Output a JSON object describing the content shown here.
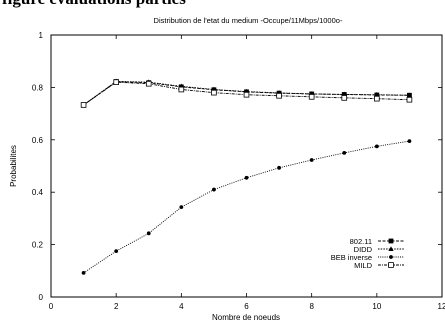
{
  "page": {
    "above_title": "figure evaluations parties"
  },
  "chart_data": {
    "type": "line",
    "title": "Distribution de l'etat du medium -Occupe/11Mbps/1000o-",
    "xlabel": "Nombre de noeuds",
    "ylabel": "Probabilites",
    "xlim": [
      0,
      12
    ],
    "ylim": [
      0,
      1
    ],
    "xticks": [
      0,
      2,
      4,
      6,
      8,
      10,
      12
    ],
    "yticks": [
      0,
      0.2,
      0.4,
      0.6,
      0.8,
      1
    ],
    "grid": false,
    "legend_position": "bottom-right",
    "x": [
      1,
      2,
      3,
      4,
      5,
      6,
      7,
      8,
      9,
      10,
      11
    ],
    "series": [
      {
        "name": "802.11",
        "marker": "filled-square",
        "color": "#000000",
        "values": [
          0.733,
          0.822,
          0.818,
          0.802,
          0.791,
          0.783,
          0.778,
          0.775,
          0.773,
          0.771,
          0.77
        ]
      },
      {
        "name": "DIDD",
        "marker": "filled-triangle",
        "color": "#000000",
        "values": [
          0.733,
          0.823,
          0.82,
          0.804,
          0.792,
          0.784,
          0.779,
          0.775,
          0.773,
          0.772,
          0.77
        ]
      },
      {
        "name": "BEB inverse",
        "marker": "filled-circle",
        "color": "#000000",
        "values": [
          0.092,
          0.175,
          0.243,
          0.343,
          0.41,
          0.455,
          0.493,
          0.523,
          0.55,
          0.575,
          0.595
        ]
      },
      {
        "name": "MILD",
        "marker": "open-square",
        "color": "#000000",
        "values": [
          0.733,
          0.82,
          0.814,
          0.792,
          0.78,
          0.772,
          0.768,
          0.764,
          0.76,
          0.757,
          0.753
        ]
      }
    ]
  }
}
